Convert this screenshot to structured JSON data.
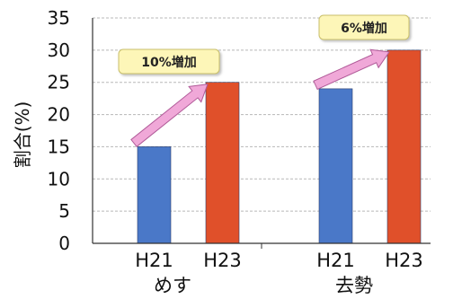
{
  "chart_data": {
    "type": "bar",
    "ylabel": "割合(%)",
    "ylim": [
      0,
      35
    ],
    "yticks": [
      0,
      5,
      10,
      15,
      20,
      25,
      30,
      35
    ],
    "grid": true,
    "groups": [
      {
        "name": "めす",
        "bars": [
          {
            "label": "H21",
            "value": 15,
            "color": "#4a78c8"
          },
          {
            "label": "H23",
            "value": 25,
            "color": "#e0502a"
          }
        ],
        "annotation": "10%増加"
      },
      {
        "name": "去勢",
        "bars": [
          {
            "label": "H21",
            "value": 24,
            "color": "#4a78c8"
          },
          {
            "label": "H23",
            "value": 30,
            "color": "#e0502a"
          }
        ],
        "annotation": "6%増加"
      }
    ],
    "arrow_color": "#f0a8d8",
    "annotation_fill": "#fdf6b8"
  }
}
